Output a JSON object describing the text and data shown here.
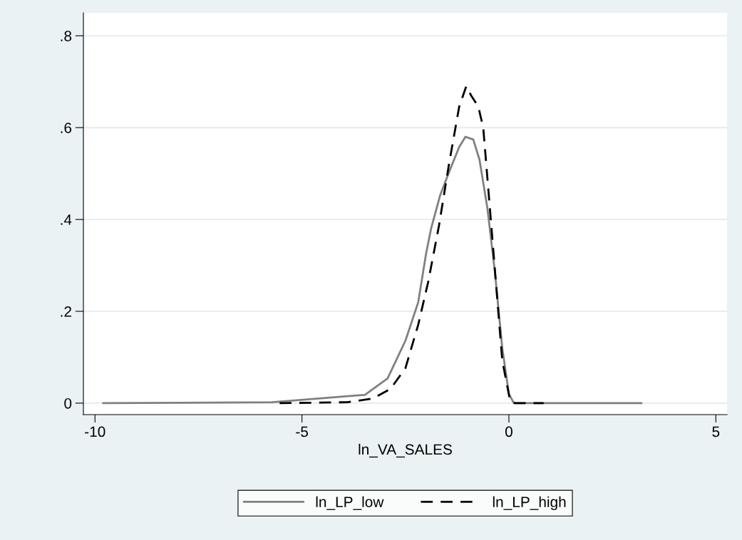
{
  "chart_data": {
    "type": "line",
    "xlabel": "ln_VA_SALES",
    "xlim": [
      -10.28,
      5.27
    ],
    "xticks": [
      -10,
      -5,
      0,
      5
    ],
    "ylim": [
      -0.025,
      0.85
    ],
    "yticks": [
      0,
      {
        "value": 0.2,
        "label": ".2"
      },
      {
        "value": 0.4,
        "label": ".4"
      },
      {
        "value": 0.6,
        "label": ".6"
      },
      {
        "value": 0.8,
        "label": ".8"
      }
    ],
    "grid": "y",
    "legend": "bottom",
    "series": [
      {
        "name": "ln_LP_low",
        "color": "#808080",
        "line_style": "solid",
        "x": [
          -9.8,
          -5.73,
          -3.79,
          -3.48,
          -2.93,
          -2.5,
          -2.19,
          -2.0,
          -1.88,
          -1.66,
          -1.45,
          -1.2,
          -1.05,
          -0.86,
          -0.71,
          -0.52,
          -0.34,
          -0.16,
          0.0,
          0.12,
          3.2
        ],
        "values": [
          0,
          0.002,
          0.016,
          0.018,
          0.054,
          0.136,
          0.22,
          0.326,
          0.38,
          0.453,
          0.502,
          0.558,
          0.58,
          0.574,
          0.53,
          0.425,
          0.287,
          0.12,
          0.02,
          0,
          0
        ]
      },
      {
        "name": "ln_LP_high",
        "color": "#000000",
        "line_style": "dashed",
        "x": [
          -5.54,
          -3.91,
          -3.29,
          -2.86,
          -2.5,
          -2.19,
          -1.95,
          -1.69,
          -1.45,
          -1.2,
          -1.03,
          -0.9,
          -0.74,
          -0.62,
          -0.46,
          -0.31,
          -0.16,
          0.03,
          0.15,
          0.84
        ],
        "values": [
          0,
          0.002,
          0.01,
          0.031,
          0.076,
          0.171,
          0.264,
          0.386,
          0.519,
          0.646,
          0.69,
          0.668,
          0.646,
          0.6,
          0.425,
          0.259,
          0.093,
          0.005,
          0,
          0
        ]
      }
    ]
  }
}
